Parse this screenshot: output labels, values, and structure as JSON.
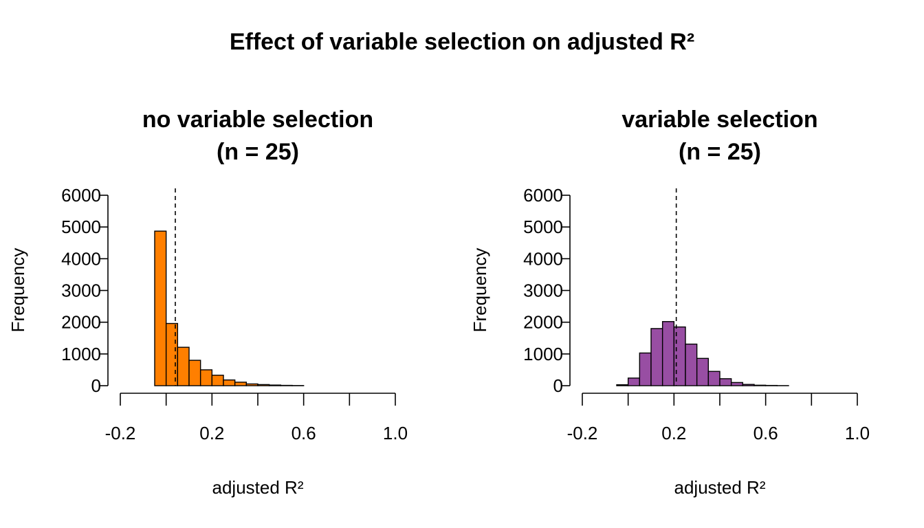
{
  "figure": {
    "title": "Effect of variable selection on adjusted R²"
  },
  "chart_data": [
    {
      "type": "bar",
      "subtitle_line1": "no variable selection",
      "subtitle_line2": "(n = 25)",
      "xlabel": "adjusted R²",
      "ylabel": "Frequency",
      "xlim": [
        -0.2,
        1.0
      ],
      "ylim": [
        0,
        6000
      ],
      "x_ticks": [
        -0.2,
        0.0,
        0.2,
        0.4,
        0.6,
        0.8,
        1.0
      ],
      "x_tick_labels": [
        "-0.2",
        "",
        "0.2",
        "",
        "0.6",
        "",
        "1.0"
      ],
      "y_ticks": [
        0,
        1000,
        2000,
        3000,
        4000,
        5000,
        6000
      ],
      "y_tick_labels": [
        "0",
        "1000",
        "2000",
        "3000",
        "4000",
        "5000",
        "6000"
      ],
      "bin_width": 0.05,
      "bin_starts": [
        -0.05,
        0.0,
        0.05,
        0.1,
        0.15,
        0.2,
        0.25,
        0.3,
        0.35,
        0.4,
        0.45,
        0.5,
        0.55
      ],
      "values": [
        4870,
        1960,
        1210,
        800,
        500,
        330,
        180,
        110,
        55,
        35,
        20,
        10,
        5
      ],
      "reference_line_x": 0.04,
      "fill_color": "#FF7F00",
      "grid": false
    },
    {
      "type": "bar",
      "subtitle_line1": "variable selection",
      "subtitle_line2": "(n = 25)",
      "xlabel": "adjusted R²",
      "ylabel": "Frequency",
      "xlim": [
        -0.2,
        1.0
      ],
      "ylim": [
        0,
        6000
      ],
      "x_ticks": [
        -0.2,
        0.0,
        0.2,
        0.4,
        0.6,
        0.8,
        1.0
      ],
      "x_tick_labels": [
        "-0.2",
        "",
        "0.2",
        "",
        "0.6",
        "",
        "1.0"
      ],
      "y_ticks": [
        0,
        1000,
        2000,
        3000,
        4000,
        5000,
        6000
      ],
      "y_tick_labels": [
        "0",
        "1000",
        "2000",
        "3000",
        "4000",
        "5000",
        "6000"
      ],
      "bin_width": 0.05,
      "bin_starts": [
        -0.05,
        0.0,
        0.05,
        0.1,
        0.15,
        0.2,
        0.25,
        0.3,
        0.35,
        0.4,
        0.45,
        0.5,
        0.55,
        0.6,
        0.65
      ],
      "values": [
        30,
        240,
        1030,
        1800,
        2020,
        1850,
        1310,
        860,
        450,
        220,
        100,
        40,
        15,
        8,
        3
      ],
      "reference_line_x": 0.21,
      "fill_color": "#984EA3",
      "grid": false
    }
  ]
}
